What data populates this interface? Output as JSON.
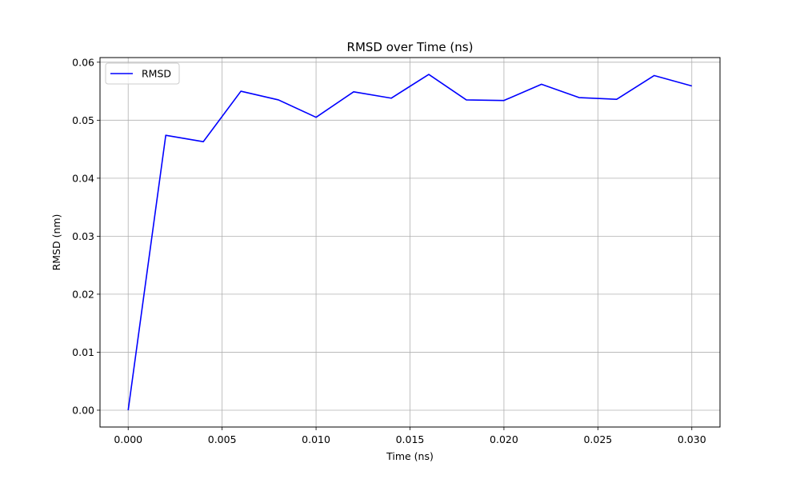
{
  "chart_data": {
    "type": "line",
    "title": "RMSD over Time (ns)",
    "xlabel": "Time (ns)",
    "ylabel": "RMSD (nm)",
    "xlim": [
      -0.0015,
      0.0315
    ],
    "ylim": [
      -0.0029,
      0.0608
    ],
    "xticks": [
      0.0,
      0.005,
      0.01,
      0.015,
      0.02,
      0.025,
      0.03
    ],
    "xtick_labels": [
      "0.000",
      "0.005",
      "0.010",
      "0.015",
      "0.020",
      "0.025",
      "0.030"
    ],
    "yticks": [
      0.0,
      0.01,
      0.02,
      0.03,
      0.04,
      0.05,
      0.06
    ],
    "ytick_labels": [
      "0.00",
      "0.01",
      "0.02",
      "0.03",
      "0.04",
      "0.05",
      "0.06"
    ],
    "grid": true,
    "legend_position": "upper-left",
    "series": [
      {
        "name": "RMSD",
        "color": "#0000ff",
        "x": [
          0.0,
          0.002,
          0.004,
          0.006,
          0.008,
          0.01,
          0.012,
          0.014,
          0.016,
          0.018,
          0.02,
          0.022,
          0.024,
          0.026,
          0.028,
          0.03
        ],
        "y": [
          0.0,
          0.0474,
          0.0463,
          0.055,
          0.0535,
          0.0505,
          0.0549,
          0.0538,
          0.0579,
          0.0535,
          0.0534,
          0.0562,
          0.0539,
          0.0536,
          0.0577,
          0.0559
        ]
      }
    ]
  }
}
